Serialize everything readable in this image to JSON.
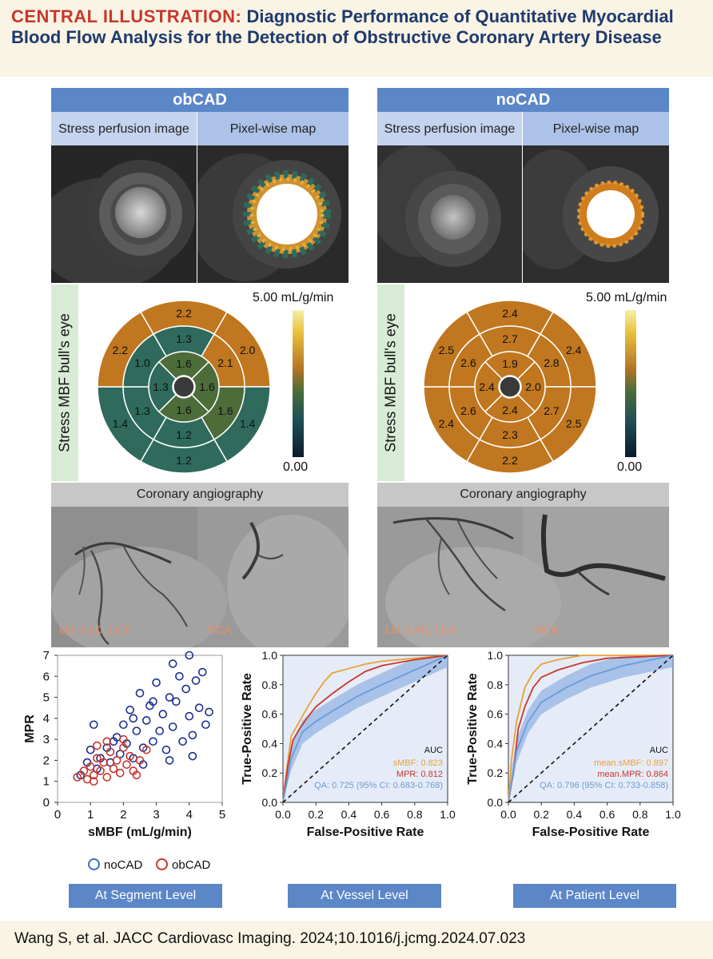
{
  "header": {
    "lead": "CENTRAL ILLUSTRATION:",
    "title": "Diagnostic Performance of Quantitative Myocardial Blood Flow Analysis for the Detection of Obstructive Coronary Artery Disease"
  },
  "groups": [
    {
      "name": "obCAD",
      "col1": "Stress perfusion image",
      "col2": "Pixel-wise map",
      "bullseye_label": "Stress MBF bull's eye",
      "scale_max": "5.00 mL/g/min",
      "scale_min": "0.00",
      "values": {
        "outer": [
          "2.2",
          "2.0",
          "1.4",
          "1.2",
          "1.4",
          "2.2"
        ],
        "mid": [
          "1.3",
          "2.1",
          "1.6",
          "1.2",
          "1.3",
          "1.0"
        ],
        "inner": [
          "1.6",
          "1.6",
          "1.6",
          "1.3"
        ]
      },
      "angio_title": "Coronary angiography",
      "angio_left": "LM, LAD, LCX",
      "angio_right": "RCA"
    },
    {
      "name": "noCAD",
      "col1": "Stress perfusion image",
      "col2": "Pixel-wise map",
      "bullseye_label": "Stress MBF bull's eye",
      "scale_max": "5.00 mL/g/min",
      "scale_min": "0.00",
      "values": {
        "outer": [
          "2.4",
          "2.4",
          "2.5",
          "2.2",
          "2.4",
          "2.5"
        ],
        "mid": [
          "2.7",
          "2.8",
          "2.7",
          "2.3",
          "2.6",
          "2.6"
        ],
        "inner": [
          "1.9",
          "2.0",
          "2.4",
          "2.4"
        ]
      },
      "angio_title": "Coronary angiography",
      "angio_left": "LM, LAD, LCX",
      "angio_right": "RCA"
    }
  ],
  "colors": {
    "title_navy": "#1f3a6e",
    "title_red": "#c8372d",
    "header_blue": "#5b86c8",
    "orange": "#c0771f",
    "dark_olive": "#4c6c39",
    "teal": "#2f6a5d",
    "noCAD_marker": "#1d2f8f",
    "obCAD_marker": "#c8372d",
    "sMBF_line": "#e8a13a",
    "MPR_line": "#c8372d",
    "QA_line": "#6a9bd6"
  },
  "icons": [
    "blood-pool-circle-icon"
  ],
  "chart_data": [
    {
      "type": "scatter",
      "level_label": "At Segment Level",
      "xlabel": "sMBF (mL/g/min)",
      "ylabel": "MPR",
      "xlim": [
        0,
        5
      ],
      "ylim": [
        0,
        7
      ],
      "xticks": [
        "0",
        "1",
        "2",
        "3",
        "4",
        "5"
      ],
      "yticks": [
        "0",
        "1",
        "2",
        "3",
        "4",
        "5",
        "6",
        "7"
      ],
      "legend": [
        "noCAD",
        "obCAD"
      ],
      "series": [
        {
          "name": "noCAD",
          "points": [
            [
              0.7,
              1.3
            ],
            [
              0.9,
              1.9
            ],
            [
              1.0,
              2.5
            ],
            [
              1.1,
              3.7
            ],
            [
              1.2,
              1.6
            ],
            [
              1.3,
              2.1
            ],
            [
              1.5,
              2.6
            ],
            [
              1.6,
              1.9
            ],
            [
              1.8,
              3.1
            ],
            [
              1.9,
              2.3
            ],
            [
              2.0,
              3.7
            ],
            [
              2.1,
              2.8
            ],
            [
              2.2,
              4.4
            ],
            [
              2.3,
              2.1
            ],
            [
              2.4,
              3.4
            ],
            [
              2.5,
              5.2
            ],
            [
              2.6,
              2.6
            ],
            [
              2.7,
              3.9
            ],
            [
              2.8,
              4.6
            ],
            [
              2.9,
              2.9
            ],
            [
              3.0,
              5.7
            ],
            [
              3.1,
              3.4
            ],
            [
              3.2,
              4.2
            ],
            [
              3.3,
              2.5
            ],
            [
              3.4,
              5.0
            ],
            [
              3.5,
              3.6
            ],
            [
              3.6,
              4.8
            ],
            [
              3.7,
              6.0
            ],
            [
              3.8,
              2.9
            ],
            [
              3.9,
              5.4
            ],
            [
              4.0,
              7.0
            ],
            [
              4.0,
              4.1
            ],
            [
              4.1,
              3.2
            ],
            [
              4.2,
              5.8
            ],
            [
              4.3,
              4.5
            ],
            [
              4.4,
              6.2
            ],
            [
              4.5,
              3.7
            ],
            [
              4.6,
              4.3
            ],
            [
              3.5,
              6.6
            ],
            [
              2.9,
              4.8
            ],
            [
              2.3,
              4.0
            ],
            [
              1.7,
              2.9
            ],
            [
              2.6,
              1.8
            ],
            [
              3.4,
              2.0
            ],
            [
              4.1,
              2.2
            ]
          ]
        },
        {
          "name": "obCAD",
          "points": [
            [
              0.6,
              1.2
            ],
            [
              0.8,
              1.5
            ],
            [
              0.9,
              1.1
            ],
            [
              1.0,
              1.7
            ],
            [
              1.1,
              1.3
            ],
            [
              1.2,
              2.1
            ],
            [
              1.3,
              1.5
            ],
            [
              1.4,
              1.9
            ],
            [
              1.5,
              1.2
            ],
            [
              1.6,
              2.4
            ],
            [
              1.7,
              1.6
            ],
            [
              1.8,
              2.0
            ],
            [
              1.9,
              1.4
            ],
            [
              2.0,
              2.6
            ],
            [
              2.1,
              1.8
            ],
            [
              2.2,
              2.2
            ],
            [
              2.3,
              1.5
            ],
            [
              2.5,
              2.0
            ],
            [
              2.7,
              2.5
            ],
            [
              1.5,
              2.9
            ],
            [
              1.2,
              2.7
            ],
            [
              2.4,
              1.3
            ],
            [
              2.0,
              3.0
            ],
            [
              1.1,
              1.0
            ]
          ]
        }
      ]
    },
    {
      "type": "line",
      "level_label": "At Vessel Level",
      "xlabel": "False-Positive Rate",
      "ylabel": "True-Positive Rate",
      "xlim": [
        0,
        1
      ],
      "ylim": [
        0,
        1
      ],
      "ticks": [
        "0.0",
        "0.2",
        "0.4",
        "0.6",
        "0.8",
        "1.0"
      ],
      "auc_title": "AUC",
      "series": [
        {
          "name": "sMBF",
          "auc_text": "sMBF: 0.823",
          "points": [
            [
              0,
              0
            ],
            [
              0.02,
              0.2
            ],
            [
              0.05,
              0.45
            ],
            [
              0.1,
              0.55
            ],
            [
              0.15,
              0.65
            ],
            [
              0.2,
              0.74
            ],
            [
              0.25,
              0.82
            ],
            [
              0.3,
              0.88
            ],
            [
              0.4,
              0.91
            ],
            [
              0.5,
              0.94
            ],
            [
              0.6,
              0.96
            ],
            [
              0.8,
              0.98
            ],
            [
              1,
              1
            ]
          ]
        },
        {
          "name": "MPR",
          "auc_text": "MPR: 0.812",
          "points": [
            [
              0,
              0
            ],
            [
              0.03,
              0.25
            ],
            [
              0.06,
              0.42
            ],
            [
              0.1,
              0.5
            ],
            [
              0.15,
              0.58
            ],
            [
              0.2,
              0.65
            ],
            [
              0.3,
              0.74
            ],
            [
              0.4,
              0.82
            ],
            [
              0.5,
              0.89
            ],
            [
              0.6,
              0.93
            ],
            [
              0.8,
              0.97
            ],
            [
              1,
              1
            ]
          ]
        },
        {
          "name": "QA",
          "auc_text": "QA: 0.725 (95% CI: 0.683-0.768)",
          "points": [
            [
              0,
              0
            ],
            [
              0.05,
              0.3
            ],
            [
              0.12,
              0.48
            ],
            [
              0.2,
              0.55
            ],
            [
              0.3,
              0.62
            ],
            [
              0.45,
              0.72
            ],
            [
              0.6,
              0.8
            ],
            [
              0.8,
              0.9
            ],
            [
              1,
              1
            ]
          ]
        },
        {
          "name": "reference",
          "points": [
            [
              0,
              0
            ],
            [
              1,
              1
            ]
          ]
        }
      ]
    },
    {
      "type": "line",
      "level_label": "At Patient Level",
      "xlabel": "False-Positive Rate",
      "ylabel": "True-Positive Rate",
      "xlim": [
        0,
        1
      ],
      "ylim": [
        0,
        1
      ],
      "ticks": [
        "0.0",
        "0.2",
        "0.4",
        "0.6",
        "0.8",
        "1.0"
      ],
      "auc_title": "AUC",
      "series": [
        {
          "name": "mean.sMBF",
          "auc_text": "mean.sMBF: 0.897",
          "points": [
            [
              0,
              0
            ],
            [
              0.02,
              0.3
            ],
            [
              0.05,
              0.55
            ],
            [
              0.1,
              0.78
            ],
            [
              0.15,
              0.88
            ],
            [
              0.2,
              0.94
            ],
            [
              0.3,
              0.97
            ],
            [
              0.45,
              1.0
            ],
            [
              1,
              1
            ]
          ]
        },
        {
          "name": "mean.MPR",
          "auc_text": "mean.MPR: 0.864",
          "points": [
            [
              0,
              0
            ],
            [
              0.03,
              0.2
            ],
            [
              0.06,
              0.5
            ],
            [
              0.1,
              0.65
            ],
            [
              0.15,
              0.78
            ],
            [
              0.2,
              0.85
            ],
            [
              0.3,
              0.9
            ],
            [
              0.45,
              0.95
            ],
            [
              0.6,
              0.98
            ],
            [
              1,
              1
            ]
          ]
        },
        {
          "name": "QA",
          "auc_text": "QA: 0.796 (95% CI: 0.733-0.858)",
          "points": [
            [
              0,
              0
            ],
            [
              0.05,
              0.35
            ],
            [
              0.12,
              0.55
            ],
            [
              0.2,
              0.68
            ],
            [
              0.35,
              0.78
            ],
            [
              0.5,
              0.86
            ],
            [
              0.7,
              0.93
            ],
            [
              1,
              1
            ]
          ]
        },
        {
          "name": "reference",
          "points": [
            [
              0,
              0
            ],
            [
              1,
              1
            ]
          ]
        }
      ]
    }
  ],
  "footer": {
    "citation": "Wang S, et al. JACC Cardiovasc Imaging. 2024;10.1016/j.jcmg.2024.07.023"
  }
}
